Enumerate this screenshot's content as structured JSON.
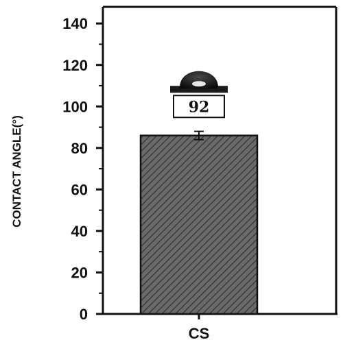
{
  "chart_data": {
    "type": "bar",
    "categories": [
      "CS"
    ],
    "values": [
      86
    ],
    "error": [
      2
    ],
    "ylabel": "CONTACT ANGLE(°)",
    "xlabel": "",
    "ylim": [
      0,
      140
    ],
    "yticks": [
      0,
      20,
      40,
      60,
      80,
      100,
      120,
      140
    ],
    "annotation": "92",
    "bar_fill": "hatched",
    "bar_color": "#555555",
    "grid": false,
    "legend": "none",
    "annotation_icon": "water-droplet-icon"
  }
}
